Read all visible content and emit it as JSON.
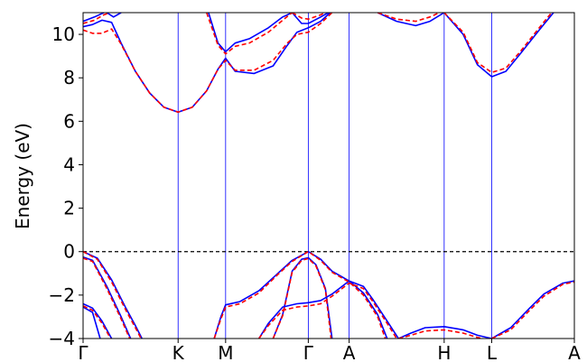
{
  "chart_data": {
    "type": "line",
    "title": "",
    "xlabel": "",
    "ylabel": "Energy (eV)",
    "ylim": [
      -4,
      11
    ],
    "yticks": [
      -4,
      -2,
      0,
      2,
      4,
      6,
      8,
      10
    ],
    "ytick_labels": [
      "−4",
      "−2",
      "0",
      "2",
      "4",
      "6",
      "8",
      "10"
    ],
    "kpath": [
      {
        "label": "Γ",
        "x": 0.0
      },
      {
        "label": "K",
        "x": 1.0
      },
      {
        "label": "M",
        "x": 1.5
      },
      {
        "label": "Γ",
        "x": 2.37
      },
      {
        "label": "A",
        "x": 2.8
      },
      {
        "label": "H",
        "x": 3.8
      },
      {
        "label": "L",
        "x": 4.3
      },
      {
        "label": "A",
        "x": 5.17
      }
    ],
    "xlim": [
      0.0,
      5.17
    ],
    "fermi_level": 0,
    "colors": {
      "series_a": "#0000ff",
      "series_b": "#ff0000",
      "fermi": "#000000",
      "kline": "#0000ff"
    },
    "series": [
      {
        "style": "solid",
        "bands": [
          [
            [
              0,
              10.35
            ],
            [
              0.1,
              10.45
            ],
            [
              0.2,
              10.65
            ],
            [
              0.3,
              10.55
            ],
            [
              0.4,
              9.6
            ],
            [
              0.55,
              8.3
            ],
            [
              0.7,
              7.3
            ],
            [
              0.85,
              6.65
            ],
            [
              1.0,
              6.42
            ],
            [
              1.15,
              6.65
            ],
            [
              1.3,
              7.4
            ],
            [
              1.42,
              8.4
            ],
            [
              1.5,
              8.9
            ],
            [
              1.6,
              8.3
            ],
            [
              1.8,
              8.2
            ],
            [
              2.0,
              8.55
            ],
            [
              2.15,
              9.5
            ],
            [
              2.25,
              10.1
            ],
            [
              2.37,
              10.3
            ],
            [
              2.5,
              10.6
            ],
            [
              2.6,
              11.0
            ]
          ],
          [
            [
              0,
              10.6
            ],
            [
              0.12,
              10.8
            ],
            [
              0.22,
              11.0
            ]
          ],
          [
            [
              0.25,
              11.0
            ],
            [
              0.32,
              10.8
            ],
            [
              0.4,
              11.0
            ]
          ],
          [
            [
              1.32,
              11.0
            ],
            [
              1.42,
              9.6
            ],
            [
              1.5,
              9.2
            ],
            [
              1.6,
              9.6
            ],
            [
              1.75,
              9.8
            ],
            [
              1.95,
              10.3
            ],
            [
              2.1,
              10.8
            ],
            [
              2.2,
              11.0
            ]
          ],
          [
            [
              2.2,
              11.0
            ],
            [
              2.3,
              10.5
            ],
            [
              2.37,
              10.5
            ],
            [
              2.5,
              10.8
            ],
            [
              2.58,
              11.0
            ]
          ],
          [
            [
              3.1,
              11.0
            ],
            [
              3.3,
              10.6
            ],
            [
              3.5,
              10.4
            ],
            [
              3.65,
              10.6
            ],
            [
              3.8,
              11.0
            ]
          ],
          [
            [
              3.8,
              11.0
            ],
            [
              4.0,
              10.0
            ],
            [
              4.15,
              8.6
            ],
            [
              4.3,
              8.05
            ],
            [
              4.45,
              8.3
            ],
            [
              4.6,
              9.1
            ],
            [
              4.8,
              10.2
            ],
            [
              4.95,
              11.0
            ]
          ],
          [
            [
              0,
              0
            ],
            [
              0.15,
              -0.3
            ],
            [
              0.3,
              -1.3
            ],
            [
              0.45,
              -2.6
            ],
            [
              0.55,
              -3.4
            ],
            [
              0.62,
              -4.0
            ]
          ],
          [
            [
              0,
              -0.25
            ],
            [
              0.1,
              -0.4
            ],
            [
              0.25,
              -1.6
            ],
            [
              0.4,
              -3.0
            ],
            [
              0.5,
              -4.0
            ]
          ],
          [
            [
              0,
              -2.4
            ],
            [
              0.1,
              -2.6
            ],
            [
              0.2,
              -3.2
            ],
            [
              0.3,
              -4.0
            ]
          ],
          [
            [
              0,
              -2.55
            ],
            [
              0.1,
              -2.8
            ],
            [
              0.18,
              -4.0
            ]
          ],
          [
            [
              1.38,
              -4.0
            ],
            [
              1.45,
              -3.0
            ],
            [
              1.5,
              -2.45
            ],
            [
              1.65,
              -2.3
            ],
            [
              1.85,
              -1.8
            ],
            [
              2.05,
              -1.0
            ],
            [
              2.2,
              -0.4
            ],
            [
              2.37,
              0
            ],
            [
              2.5,
              -0.35
            ],
            [
              2.62,
              -0.9
            ],
            [
              2.8,
              -1.35
            ],
            [
              2.95,
              -1.9
            ],
            [
              3.1,
              -2.9
            ],
            [
              3.2,
              -4.0
            ]
          ],
          [
            [
              1.85,
              -4.0
            ],
            [
              1.95,
              -3.3
            ],
            [
              2.1,
              -2.55
            ],
            [
              2.25,
              -2.4
            ],
            [
              2.37,
              -2.35
            ],
            [
              2.5,
              -2.25
            ],
            [
              2.62,
              -1.95
            ],
            [
              2.8,
              -1.35
            ],
            [
              2.95,
              -1.6
            ],
            [
              3.05,
              -2.2
            ],
            [
              3.2,
              -3.2
            ],
            [
              3.32,
              -4.0
            ]
          ],
          [
            [
              2.0,
              -4.0
            ],
            [
              2.1,
              -2.9
            ],
            [
              2.2,
              -0.9
            ],
            [
              2.3,
              -0.35
            ],
            [
              2.37,
              -0.28
            ],
            [
              2.45,
              -0.6
            ],
            [
              2.55,
              -1.7
            ],
            [
              2.62,
              -4.0
            ]
          ],
          [
            [
              3.32,
              -4.0
            ],
            [
              3.45,
              -3.75
            ],
            [
              3.6,
              -3.5
            ],
            [
              3.8,
              -3.45
            ],
            [
              4.0,
              -3.6
            ],
            [
              4.15,
              -3.85
            ],
            [
              4.3,
              -4.0
            ]
          ],
          [
            [
              4.3,
              -4.0
            ],
            [
              4.5,
              -3.5
            ],
            [
              4.7,
              -2.6
            ],
            [
              4.85,
              -1.95
            ],
            [
              5.05,
              -1.45
            ],
            [
              5.17,
              -1.35
            ]
          ]
        ]
      },
      {
        "style": "dashed",
        "bands": [
          [
            [
              0,
              10.2
            ],
            [
              0.1,
              10.05
            ],
            [
              0.2,
              10.05
            ],
            [
              0.3,
              10.25
            ],
            [
              0.4,
              9.55
            ],
            [
              0.55,
              8.3
            ],
            [
              0.7,
              7.3
            ],
            [
              0.85,
              6.65
            ],
            [
              1.0,
              6.42
            ],
            [
              1.15,
              6.65
            ],
            [
              1.3,
              7.4
            ],
            [
              1.42,
              8.4
            ],
            [
              1.5,
              8.8
            ],
            [
              1.6,
              8.35
            ],
            [
              1.8,
              8.35
            ],
            [
              2.0,
              8.8
            ],
            [
              2.15,
              9.6
            ],
            [
              2.25,
              10.0
            ],
            [
              2.37,
              10.1
            ],
            [
              2.5,
              10.5
            ],
            [
              2.62,
              11.0
            ]
          ],
          [
            [
              0,
              10.5
            ],
            [
              0.12,
              10.65
            ],
            [
              0.22,
              10.9
            ],
            [
              0.28,
              11.0
            ]
          ],
          [
            [
              1.3,
              11.0
            ],
            [
              1.42,
              9.5
            ],
            [
              1.5,
              9.1
            ],
            [
              1.6,
              9.45
            ],
            [
              1.75,
              9.6
            ],
            [
              1.95,
              10.1
            ],
            [
              2.1,
              10.65
            ],
            [
              2.2,
              11.0
            ]
          ],
          [
            [
              2.2,
              11.0
            ],
            [
              2.3,
              10.75
            ],
            [
              2.37,
              10.7
            ],
            [
              2.5,
              10.9
            ],
            [
              2.55,
              11.0
            ]
          ],
          [
            [
              3.1,
              11.0
            ],
            [
              3.3,
              10.7
            ],
            [
              3.5,
              10.6
            ],
            [
              3.65,
              10.8
            ],
            [
              3.75,
              11.0
            ]
          ],
          [
            [
              3.8,
              11.0
            ],
            [
              4.0,
              10.1
            ],
            [
              4.15,
              8.7
            ],
            [
              4.3,
              8.25
            ],
            [
              4.45,
              8.45
            ],
            [
              4.6,
              9.2
            ],
            [
              4.8,
              10.3
            ],
            [
              4.93,
              11.0
            ]
          ],
          [
            [
              0,
              0
            ],
            [
              0.15,
              -0.35
            ],
            [
              0.3,
              -1.4
            ],
            [
              0.45,
              -2.7
            ],
            [
              0.55,
              -3.5
            ],
            [
              0.61,
              -4.0
            ]
          ],
          [
            [
              0,
              -0.3
            ],
            [
              0.1,
              -0.45
            ],
            [
              0.25,
              -1.7
            ],
            [
              0.4,
              -3.1
            ],
            [
              0.49,
              -4.0
            ]
          ],
          [
            [
              0,
              -2.5
            ],
            [
              0.1,
              -2.7
            ],
            [
              0.2,
              -3.3
            ],
            [
              0.29,
              -4.0
            ]
          ],
          [
            [
              1.38,
              -4.0
            ],
            [
              1.45,
              -3.1
            ],
            [
              1.5,
              -2.55
            ],
            [
              1.65,
              -2.4
            ],
            [
              1.85,
              -1.9
            ],
            [
              2.05,
              -1.05
            ],
            [
              2.2,
              -0.45
            ],
            [
              2.37,
              0
            ],
            [
              2.5,
              -0.4
            ],
            [
              2.62,
              -0.95
            ],
            [
              2.8,
              -1.4
            ],
            [
              2.95,
              -2.0
            ],
            [
              3.1,
              -3.0
            ],
            [
              3.18,
              -4.0
            ]
          ],
          [
            [
              1.85,
              -4.0
            ],
            [
              1.95,
              -3.4
            ],
            [
              2.1,
              -2.7
            ],
            [
              2.25,
              -2.55
            ],
            [
              2.37,
              -2.5
            ],
            [
              2.5,
              -2.4
            ],
            [
              2.62,
              -2.05
            ],
            [
              2.8,
              -1.45
            ],
            [
              2.95,
              -1.7
            ],
            [
              3.05,
              -2.3
            ],
            [
              3.2,
              -3.3
            ],
            [
              3.3,
              -4.0
            ]
          ],
          [
            [
              2.0,
              -4.0
            ],
            [
              2.1,
              -2.95
            ],
            [
              2.2,
              -0.95
            ],
            [
              2.3,
              -0.4
            ],
            [
              2.37,
              -0.32
            ],
            [
              2.45,
              -0.65
            ],
            [
              2.55,
              -1.75
            ],
            [
              2.61,
              -4.0
            ]
          ],
          [
            [
              3.32,
              -4.0
            ],
            [
              3.45,
              -3.85
            ],
            [
              3.6,
              -3.65
            ],
            [
              3.8,
              -3.6
            ],
            [
              4.0,
              -3.75
            ],
            [
              4.15,
              -3.95
            ],
            [
              4.2,
              -4.0
            ]
          ],
          [
            [
              4.3,
              -4.0
            ],
            [
              4.5,
              -3.6
            ],
            [
              4.7,
              -2.7
            ],
            [
              4.85,
              -2.05
            ],
            [
              5.05,
              -1.5
            ],
            [
              5.17,
              -1.4
            ]
          ]
        ]
      }
    ]
  }
}
